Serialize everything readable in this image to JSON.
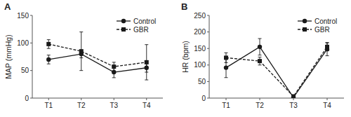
{
  "chart_data": [
    {
      "type": "line",
      "title": "A",
      "y_label": "MAP (mmHg)",
      "categories": [
        "T1",
        "T2",
        "T3",
        "T4"
      ],
      "series": [
        {
          "name": "Control",
          "color": "#1a1a1a",
          "marker": "circle",
          "line_style": "solid",
          "values": [
            70,
            80,
            47,
            55
          ],
          "errors": [
            8,
            7,
            10,
            8
          ]
        },
        {
          "name": "GBR",
          "color": "#1a1a1a",
          "marker": "square",
          "line_style": "dashed",
          "values": [
            98,
            85,
            57,
            65
          ],
          "errors": [
            8,
            35,
            8,
            32
          ]
        }
      ],
      "ylim": [
        0,
        150
      ],
      "yticks": [
        0,
        50,
        100,
        150
      ],
      "grid": false,
      "legend": "upper right"
    },
    {
      "type": "line",
      "title": "B",
      "y_label": "HR (bpm)",
      "categories": [
        "T1",
        "T2",
        "T3",
        "T4"
      ],
      "series": [
        {
          "name": "Control",
          "color": "#1a1a1a",
          "marker": "circle",
          "line_style": "solid",
          "values": [
            92,
            155,
            2,
            148
          ],
          "errors": [
            30,
            25,
            2,
            20
          ]
        },
        {
          "name": "GBR",
          "color": "#1a1a1a",
          "marker": "square",
          "line_style": "dashed",
          "values": [
            122,
            112,
            5,
            155
          ],
          "errors": [
            15,
            12,
            5,
            12
          ]
        }
      ],
      "ylim": [
        0,
        250
      ],
      "yticks": [
        0,
        50,
        100,
        150,
        200,
        250
      ],
      "grid": false,
      "legend": "upper right"
    }
  ]
}
